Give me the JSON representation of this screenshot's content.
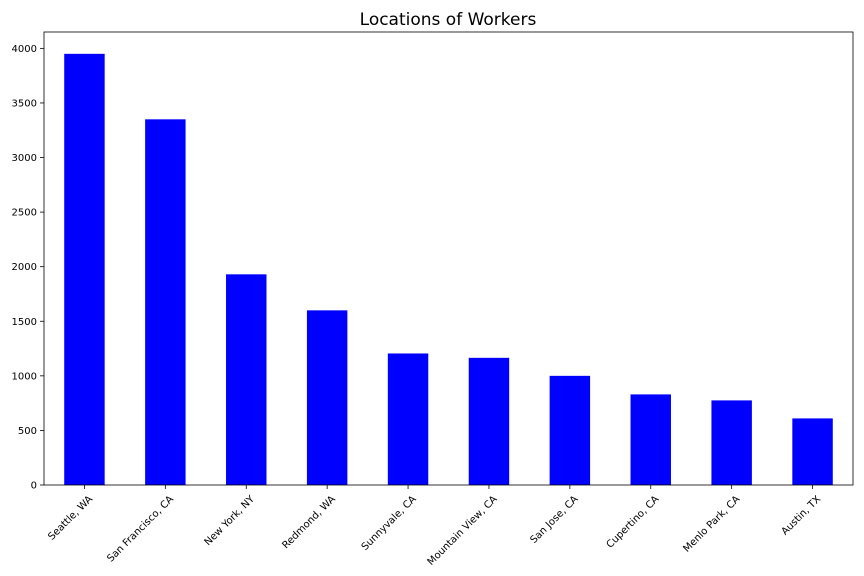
{
  "chart_data": {
    "type": "bar",
    "title": "Locations of Workers",
    "xlabel": "",
    "ylabel": "",
    "categories": [
      "Seattle, WA",
      "San Francisco, CA",
      "New York, NY",
      "Redmond, WA",
      "Sunnyvale, CA",
      "Mountain View, CA",
      "San Jose, CA",
      "Cupertino, CA",
      "Menlo Park, CA",
      "Austin, TX"
    ],
    "values": [
      3950,
      3350,
      1930,
      1600,
      1205,
      1165,
      1000,
      830,
      775,
      610
    ],
    "ylim": [
      0,
      4150
    ],
    "yticks": [
      0,
      500,
      1000,
      1500,
      2000,
      2500,
      3000,
      3500,
      4000
    ],
    "grid": false,
    "legend": "none",
    "bar_color": "#0000ff"
  }
}
